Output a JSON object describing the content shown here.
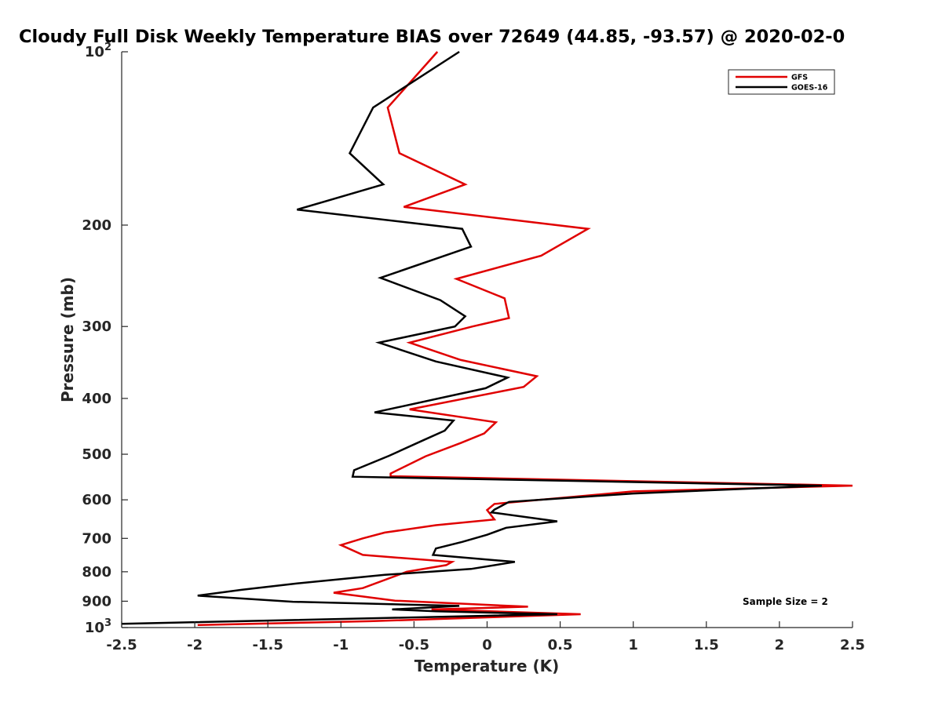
{
  "chart_data": {
    "type": "line",
    "title": "Cloudy Full Disk Weekly Temperature BIAS over 72649 (44.85, -93.57) @ 2020-02-0",
    "xlabel": "Temperature (K)",
    "ylabel": "Pressure (mb)",
    "xlim": [
      -2.5,
      2.5
    ],
    "ylim": [
      100,
      1000
    ],
    "y_scale": "log",
    "y_reversed": true,
    "x_ticks": [
      -2.5,
      -2,
      -1.5,
      -1,
      -0.5,
      0,
      0.5,
      1,
      1.5,
      2,
      2.5
    ],
    "x_tick_labels": [
      "-2.5",
      "-2",
      "-1.5",
      "-1",
      "-0.5",
      "0",
      "0.5",
      "1",
      "1.5",
      "2",
      "2.5"
    ],
    "y_ticks": [
      {
        "value": 100,
        "base": "10",
        "exp": "2"
      },
      {
        "value": 200,
        "label": "200"
      },
      {
        "value": 300,
        "label": "300"
      },
      {
        "value": 400,
        "label": "400"
      },
      {
        "value": 500,
        "label": "500"
      },
      {
        "value": 600,
        "label": "600"
      },
      {
        "value": 700,
        "label": "700"
      },
      {
        "value": 800,
        "label": "800"
      },
      {
        "value": 900,
        "label": "900"
      },
      {
        "value": 1000,
        "base": "10",
        "exp": "3"
      }
    ],
    "grid": false,
    "legend_position": "top-right",
    "series": [
      {
        "name": "GFS",
        "color": "#e00000",
        "points": [
          [
            -0.34,
            100
          ],
          [
            -0.68,
            125
          ],
          [
            -0.6,
            150
          ],
          [
            -0.15,
            170
          ],
          [
            -0.57,
            186
          ],
          [
            0.69,
            203
          ],
          [
            0.37,
            226
          ],
          [
            -0.21,
            248
          ],
          [
            0.12,
            268
          ],
          [
            0.15,
            290
          ],
          [
            -0.1,
            300
          ],
          [
            -0.53,
            320
          ],
          [
            -0.18,
            343
          ],
          [
            0.34,
            366
          ],
          [
            0.25,
            382
          ],
          [
            -0.53,
            418
          ],
          [
            0.06,
            440
          ],
          [
            -0.02,
            460
          ],
          [
            -0.18,
            478
          ],
          [
            -0.42,
            504
          ],
          [
            -0.66,
            540
          ],
          [
            -0.66,
            546
          ],
          [
            2.5,
            567
          ],
          [
            1.0,
            580
          ],
          [
            0.05,
            610
          ],
          [
            0.0,
            625
          ],
          [
            0.05,
            649
          ],
          [
            -0.35,
            664
          ],
          [
            -0.7,
            684
          ],
          [
            -0.85,
            700
          ],
          [
            -1.0,
            719
          ],
          [
            -0.85,
            748
          ],
          [
            -0.24,
            769
          ],
          [
            -0.28,
            779
          ],
          [
            -0.55,
            800
          ],
          [
            -0.85,
            854
          ],
          [
            -1.05,
            870
          ],
          [
            -0.63,
            898
          ],
          [
            0.28,
            920
          ],
          [
            -0.38,
            930
          ],
          [
            0.64,
            948
          ],
          [
            -0.8,
            975
          ],
          [
            -1.98,
            990
          ]
        ]
      },
      {
        "name": "GOES-16",
        "color": "#000000",
        "points": [
          [
            -0.19,
            100
          ],
          [
            -0.78,
            125
          ],
          [
            -0.94,
            150
          ],
          [
            -0.71,
            170
          ],
          [
            -1.3,
            188
          ],
          [
            -0.17,
            203
          ],
          [
            -0.11,
            218
          ],
          [
            -0.73,
            247
          ],
          [
            -0.32,
            270
          ],
          [
            -0.15,
            288
          ],
          [
            -0.22,
            300
          ],
          [
            -0.74,
            320
          ],
          [
            -0.35,
            345
          ],
          [
            0.14,
            368
          ],
          [
            -0.01,
            384
          ],
          [
            -0.77,
            423
          ],
          [
            -0.23,
            437
          ],
          [
            -0.29,
            455
          ],
          [
            -0.43,
            472
          ],
          [
            -0.67,
            503
          ],
          [
            -0.91,
            533
          ],
          [
            -0.92,
            547
          ],
          [
            2.29,
            567
          ],
          [
            1.0,
            585
          ],
          [
            0.15,
            605
          ],
          [
            0.05,
            624
          ],
          [
            0.03,
            631
          ],
          [
            0.48,
            654
          ],
          [
            0.13,
            671
          ],
          [
            0.0,
            690
          ],
          [
            -0.17,
            710
          ],
          [
            -0.35,
            729
          ],
          [
            -0.37,
            748
          ],
          [
            0.19,
            769
          ],
          [
            -0.11,
            791
          ],
          [
            -0.7,
            810
          ],
          [
            -1.3,
            838
          ],
          [
            -1.68,
            860
          ],
          [
            -1.98,
            880
          ],
          [
            -1.33,
            902
          ],
          [
            -0.19,
            917
          ],
          [
            -0.65,
            930
          ],
          [
            -0.35,
            937
          ],
          [
            0.48,
            948
          ],
          [
            -2.5,
            985
          ]
        ]
      }
    ],
    "annotations": [
      {
        "text": "Sample Size = 2"
      }
    ]
  }
}
